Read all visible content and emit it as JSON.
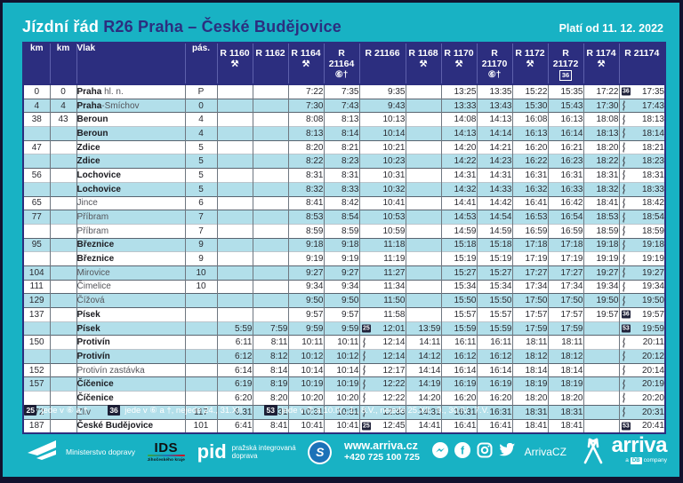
{
  "header": {
    "title": "Jízdní řád",
    "route": "R26 Praha – České Budějovice",
    "valid": "Platí od 11. 12. 2022"
  },
  "table": {
    "left_headers": [
      "km",
      "km",
      "Vlak",
      "pás."
    ],
    "trains": [
      {
        "no": "R 1160",
        "sym": "hammers"
      },
      {
        "no": "R 1162",
        "sym": ""
      },
      {
        "no": "R 1164",
        "sym": "hammers"
      },
      {
        "no": "R 21164",
        "sym": "sixcross"
      },
      {
        "no": "R 21166",
        "sym": ""
      },
      {
        "no": "R 1168",
        "sym": "hammers"
      },
      {
        "no": "R 1170",
        "sym": "hammers"
      },
      {
        "no": "R 21170",
        "sym": "sixcross"
      },
      {
        "no": "R 1172",
        "sym": "hammers"
      },
      {
        "no": "R 21172",
        "sym": "box36"
      },
      {
        "no": "R 1174",
        "sym": "hammers"
      },
      {
        "no": "R 21174",
        "sym": ""
      }
    ],
    "rows": [
      {
        "km1": "0",
        "km2": "0",
        "name": "Praha",
        "sfx": " hl. n.",
        "bold": true,
        "pas": "P",
        "g": true,
        "c": [
          "",
          "",
          "7:22",
          "7:35",
          "9:35",
          "",
          "13:25",
          "13:35",
          "15:22",
          "15:35",
          "17:22",
          "36|17:35"
        ]
      },
      {
        "km1": "4",
        "km2": "4",
        "name": "Praha",
        "sfx": "-Smíchov",
        "bold": true,
        "pas": "0",
        "g": true,
        "c": [
          "",
          "",
          "7:30",
          "7:43",
          "9:43",
          "",
          "13:33",
          "13:43",
          "15:30",
          "15:43",
          "17:30",
          "~|17:43"
        ]
      },
      {
        "km1": "38",
        "km2": "43",
        "name": "Beroun",
        "sfx": "",
        "bold": true,
        "pas": "4",
        "g": true,
        "c": [
          "",
          "",
          "8:08",
          "8:13",
          "10:13",
          "",
          "14:08",
          "14:13",
          "16:08",
          "16:13",
          "18:08",
          "~|18:13"
        ]
      },
      {
        "km1": "",
        "km2": "",
        "name": "Beroun",
        "sfx": "",
        "bold": true,
        "pas": "4",
        "g": false,
        "c": [
          "",
          "",
          "8:13",
          "8:14",
          "10:14",
          "",
          "14:13",
          "14:14",
          "16:13",
          "16:14",
          "18:13",
          "~|18:14"
        ]
      },
      {
        "km1": "47",
        "km2": "",
        "name": "Zdice",
        "sfx": "",
        "bold": true,
        "pas": "5",
        "g": true,
        "c": [
          "",
          "",
          "8:20",
          "8:21",
          "10:21",
          "",
          "14:20",
          "14:21",
          "16:20",
          "16:21",
          "18:20",
          "~|18:21"
        ]
      },
      {
        "km1": "",
        "km2": "",
        "name": "Zdice",
        "sfx": "",
        "bold": true,
        "pas": "5",
        "g": false,
        "c": [
          "",
          "",
          "8:22",
          "8:23",
          "10:23",
          "",
          "14:22",
          "14:23",
          "16:22",
          "16:23",
          "18:22",
          "~|18:23"
        ]
      },
      {
        "km1": "56",
        "km2": "",
        "name": "Lochovice",
        "sfx": "",
        "bold": true,
        "pas": "5",
        "g": true,
        "c": [
          "",
          "",
          "8:31",
          "8:31",
          "10:31",
          "",
          "14:31",
          "14:31",
          "16:31",
          "16:31",
          "18:31",
          "~|18:31"
        ]
      },
      {
        "km1": "",
        "km2": "",
        "name": "Lochovice",
        "sfx": "",
        "bold": true,
        "pas": "5",
        "g": false,
        "c": [
          "",
          "",
          "8:32",
          "8:33",
          "10:32",
          "",
          "14:32",
          "14:33",
          "16:32",
          "16:33",
          "18:32",
          "~|18:33"
        ]
      },
      {
        "km1": "65",
        "km2": "",
        "name": "Jince",
        "sfx": "",
        "bold": false,
        "pas": "6",
        "g": true,
        "c": [
          "",
          "",
          "8:41",
          "8:42",
          "10:41",
          "",
          "14:41",
          "14:42",
          "16:41",
          "16:42",
          "18:41",
          "~|18:42"
        ]
      },
      {
        "km1": "77",
        "km2": "",
        "name": "Příbram",
        "sfx": "",
        "bold": false,
        "pas": "7",
        "g": true,
        "c": [
          "",
          "",
          "8:53",
          "8:54",
          "10:53",
          "",
          "14:53",
          "14:54",
          "16:53",
          "16:54",
          "18:53",
          "~|18:54"
        ]
      },
      {
        "km1": "",
        "km2": "",
        "name": "Příbram",
        "sfx": "",
        "bold": false,
        "pas": "7",
        "g": false,
        "c": [
          "",
          "",
          "8:59",
          "8:59",
          "10:59",
          "",
          "14:59",
          "14:59",
          "16:59",
          "16:59",
          "18:59",
          "~|18:59"
        ]
      },
      {
        "km1": "95",
        "km2": "",
        "name": "Březnice",
        "sfx": "",
        "bold": true,
        "pas": "9",
        "g": true,
        "c": [
          "",
          "",
          "9:18",
          "9:18",
          "11:18",
          "",
          "15:18",
          "15:18",
          "17:18",
          "17:18",
          "19:18",
          "~|19:18"
        ]
      },
      {
        "km1": "",
        "km2": "",
        "name": "Březnice",
        "sfx": "",
        "bold": true,
        "pas": "9",
        "g": false,
        "c": [
          "",
          "",
          "9:19",
          "9:19",
          "11:19",
          "",
          "15:19",
          "15:19",
          "17:19",
          "17:19",
          "19:19",
          "~|19:19"
        ]
      },
      {
        "km1": "104",
        "km2": "",
        "name": "Mirovice",
        "sfx": "",
        "bold": false,
        "pas": "10",
        "g": true,
        "c": [
          "",
          "",
          "9:27",
          "9:27",
          "11:27",
          "",
          "15:27",
          "15:27",
          "17:27",
          "17:27",
          "19:27",
          "~|19:27"
        ]
      },
      {
        "km1": "111",
        "km2": "",
        "name": "Čimelice",
        "sfx": "",
        "bold": false,
        "pas": "10",
        "g": true,
        "c": [
          "",
          "",
          "9:34",
          "9:34",
          "11:34",
          "",
          "15:34",
          "15:34",
          "17:34",
          "17:34",
          "19:34",
          "~|19:34"
        ]
      },
      {
        "km1": "129",
        "km2": "",
        "name": "Čížová",
        "sfx": "",
        "bold": false,
        "pas": "",
        "g": true,
        "c": [
          "",
          "",
          "9:50",
          "9:50",
          "11:50",
          "",
          "15:50",
          "15:50",
          "17:50",
          "17:50",
          "19:50",
          "~|19:50"
        ]
      },
      {
        "km1": "137",
        "km2": "",
        "name": "Písek",
        "sfx": "",
        "bold": true,
        "pas": "",
        "g": true,
        "c": [
          "",
          "",
          "9:57",
          "9:57",
          "11:58",
          "",
          "15:57",
          "15:57",
          "17:57",
          "17:57",
          "19:57",
          "36|19:57"
        ]
      },
      {
        "km1": "",
        "km2": "",
        "name": "Písek",
        "sfx": "",
        "bold": true,
        "pas": "",
        "g": false,
        "c": [
          "5:59",
          "7:59",
          "9:59",
          "9:59",
          "25|12:01",
          "13:59",
          "15:59",
          "15:59",
          "17:59",
          "17:59",
          "",
          "53|19:59"
        ]
      },
      {
        "km1": "150",
        "km2": "",
        "name": "Protivín",
        "sfx": "",
        "bold": true,
        "pas": "",
        "g": true,
        "c": [
          "6:11",
          "8:11",
          "10:11",
          "10:11",
          "~|12:14",
          "14:11",
          "16:11",
          "16:11",
          "18:11",
          "18:11",
          "",
          "~|20:11"
        ]
      },
      {
        "km1": "",
        "km2": "",
        "name": "Protivín",
        "sfx": "",
        "bold": true,
        "pas": "",
        "g": false,
        "c": [
          "6:12",
          "8:12",
          "10:12",
          "10:12",
          "~|12:14",
          "14:12",
          "16:12",
          "16:12",
          "18:12",
          "18:12",
          "",
          "~|20:12"
        ]
      },
      {
        "km1": "152",
        "km2": "",
        "name": "Protivín zastávka",
        "sfx": "",
        "bold": false,
        "pas": "",
        "g": true,
        "c": [
          "6:14",
          "8:14",
          "10:14",
          "10:14",
          "~|12:17",
          "14:14",
          "16:14",
          "16:14",
          "18:14",
          "18:14",
          "",
          "~|20:14"
        ]
      },
      {
        "km1": "157",
        "km2": "",
        "name": "Číčenice",
        "sfx": "",
        "bold": true,
        "pas": "",
        "g": true,
        "c": [
          "6:19",
          "8:19",
          "10:19",
          "10:19",
          "~|12:22",
          "14:19",
          "16:19",
          "16:19",
          "18:19",
          "18:19",
          "",
          "~|20:19"
        ]
      },
      {
        "km1": "",
        "km2": "",
        "name": "Číčenice",
        "sfx": "",
        "bold": true,
        "pas": "",
        "g": false,
        "c": [
          "6:20",
          "8:20",
          "10:20",
          "10:20",
          "~|12:22",
          "14:20",
          "16:20",
          "16:20",
          "18:20",
          "18:20",
          "",
          "~|20:20"
        ]
      },
      {
        "km1": "172",
        "km2": "",
        "name": "Zliv",
        "sfx": "",
        "bold": false,
        "pas": "117",
        "g": true,
        "c": [
          "6:31",
          "8:31",
          "10:31",
          "10:31",
          "~|12:33",
          "14:31",
          "16:31",
          "16:31",
          "18:31",
          "18:31",
          "",
          "~|20:31"
        ]
      },
      {
        "km1": "187",
        "km2": "",
        "name": "České Budějovice",
        "sfx": "",
        "bold": true,
        "pas": "101",
        "g": true,
        "c": [
          "6:41",
          "8:41",
          "10:41",
          "10:41",
          "25|12:45",
          "14:41",
          "16:41",
          "16:41",
          "18:41",
          "18:41",
          "",
          "53|20:41"
        ]
      }
    ]
  },
  "notes": [
    {
      "badge": "25",
      "text": "jede v ⑥ a †"
    },
    {
      "badge": "36",
      "text": "jede v ⑥ a †, nejede 24., 31.XII."
    },
    {
      "badge": "53",
      "text": "jede v ⑦ a 10.IV., 1., 8.V., nejede 25.XII., 9., 30.IV., 7.V."
    }
  ],
  "footer": {
    "ministry_label": "Ministerstvo dopravy",
    "ids_label": "IDS",
    "ids_sub": "Jihočeského kraje",
    "pid_label": "pid",
    "pid_sub1": "pražská integrovaná",
    "pid_sub2": "doprava",
    "esko_label": "S",
    "web": "www.arriva.cz",
    "phone": "+420 725 100 725",
    "social_handle": "ArrivaCZ",
    "arriva_label": "arriva",
    "db_prefix": "a",
    "db_label": "DB",
    "db_suffix": "company"
  }
}
